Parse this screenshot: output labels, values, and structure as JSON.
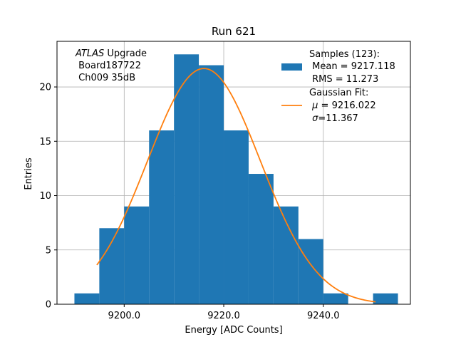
{
  "chart_data": {
    "type": "bar",
    "title": "Run 621",
    "xlabel": "Energy [ADC Counts]",
    "ylabel": "Entries",
    "xlim": [
      9186.5,
      9257.5
    ],
    "ylim": [
      0,
      24.2
    ],
    "xticks": [
      9200.0,
      9220.0,
      9240.0
    ],
    "xtick_labels": [
      "9200.0",
      "9220.0",
      "9240.0"
    ],
    "yticks": [
      0,
      5,
      10,
      15,
      20
    ],
    "ytick_labels": [
      "0",
      "5",
      "10",
      "15",
      "20"
    ],
    "grid": true,
    "bin_edges": [
      9190,
      9195,
      9200,
      9205,
      9210,
      9215,
      9220,
      9225,
      9230,
      9235,
      9240,
      9245,
      9250,
      9255
    ],
    "series": [
      {
        "name": "Samples (123):",
        "type": "histogram",
        "color": "#1f77b4",
        "values": [
          1,
          7,
          9,
          16,
          23,
          22,
          16,
          12,
          9,
          6,
          1,
          0,
          1
        ]
      },
      {
        "name": "Gaussian Fit:",
        "type": "line",
        "color": "#ff7f0e",
        "mu": 9216.022,
        "sigma": 11.367,
        "amplitude": 21.7,
        "x_range": [
          9194.5,
          9250.5
        ]
      }
    ],
    "annotation": {
      "experiment": "ATLAS",
      "experiment_suffix": " Upgrade",
      "board": " Board187722",
      "channel": " Ch009 35dB"
    },
    "legend": {
      "placement": "top-right",
      "samples_title": "Samples (123):",
      "samples_mean": " Mean = 9217.118",
      "samples_rms": " RMS = 11.273",
      "fit_title": "Gaussian Fit:",
      "fit_mu_symbol": "μ",
      "fit_mu_value": " = 9216.022",
      "fit_sigma_symbol": "σ",
      "fit_sigma_value": "=11.367"
    }
  }
}
